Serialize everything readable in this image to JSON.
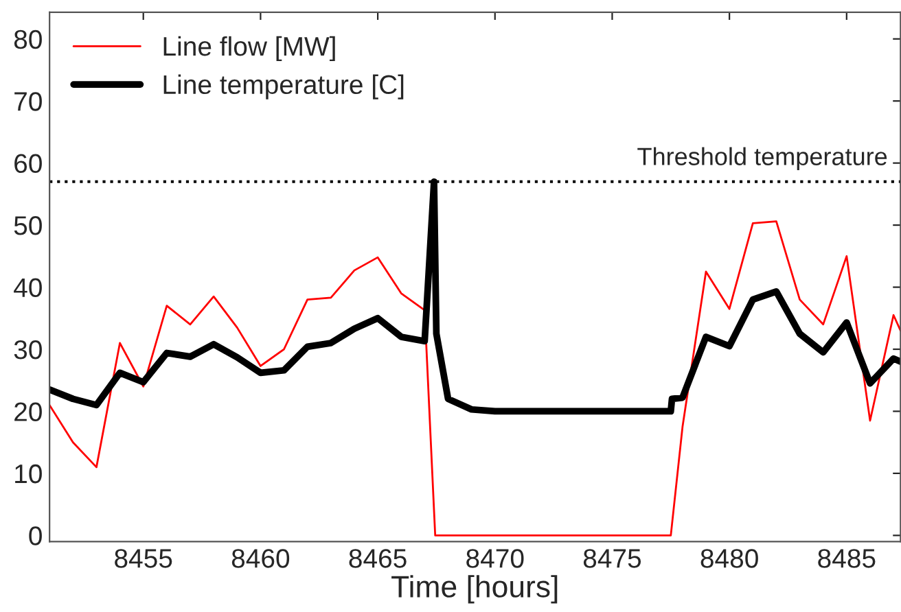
{
  "chart_data": {
    "type": "line",
    "xlabel": "Time [hours]",
    "xlim": [
      8451,
      8487.3
    ],
    "ylim": [
      -1,
      84.3
    ],
    "xticks": [
      8455,
      8460,
      8465,
      8470,
      8475,
      8480,
      8485
    ],
    "yticks": [
      0,
      10,
      20,
      30,
      40,
      50,
      60,
      70,
      80
    ],
    "grid": false,
    "legend": "top left",
    "marker": "none",
    "line_style": "solid",
    "series": [
      {
        "name": "Line flow [MW]",
        "color": "#ff0000",
        "x": [
          8451,
          8452,
          8453,
          8454,
          8455,
          8456,
          8457,
          8458,
          8459,
          8460,
          8461,
          8462,
          8463,
          8464,
          8465,
          8466,
          8467,
          8467.1,
          8467.4,
          8467.45,
          8477.5,
          8477.55,
          8478,
          8479,
          8480,
          8481,
          8482,
          8483,
          8484,
          8485,
          8486,
          8487,
          8487.3
        ],
        "values": [
          21,
          15,
          11,
          31,
          24,
          37,
          34,
          38.5,
          33.5,
          27.3,
          30,
          38,
          38.3,
          42.7,
          44.8,
          39,
          36.3,
          null,
          null,
          0,
          0,
          null,
          17.5,
          42.5,
          36.5,
          50.3,
          50.6,
          38,
          34,
          45,
          18.5,
          35.5,
          33
        ]
      },
      {
        "name": "Line temperature [C]",
        "color": "#000000",
        "x": [
          8451,
          8452,
          8453,
          8454,
          8455,
          8456,
          8457,
          8458,
          8459,
          8460,
          8461,
          8462,
          8463,
          8464,
          8465,
          8466,
          8467,
          8467.4,
          8467.5,
          8468,
          8469,
          8470,
          8477.5,
          8477.55,
          8478,
          8479,
          8480,
          8481,
          8482,
          8483,
          8484,
          8485,
          8486,
          8487,
          8487.3
        ],
        "values": [
          23.5,
          22,
          21,
          26.2,
          24.7,
          29.4,
          28.8,
          30.8,
          28.7,
          26.2,
          26.6,
          30.4,
          31,
          33.3,
          35,
          32,
          31.3,
          57,
          32.5,
          22,
          20.3,
          20,
          20,
          22,
          22.2,
          32,
          30.5,
          38,
          39.3,
          32.5,
          29.5,
          34.3,
          24.5,
          28.5,
          28
        ]
      }
    ],
    "ref_lines": [
      {
        "axis": "y",
        "value": 57,
        "label": "Threshold temperature",
        "color": "#000000",
        "line_style": "dotted"
      }
    ]
  }
}
